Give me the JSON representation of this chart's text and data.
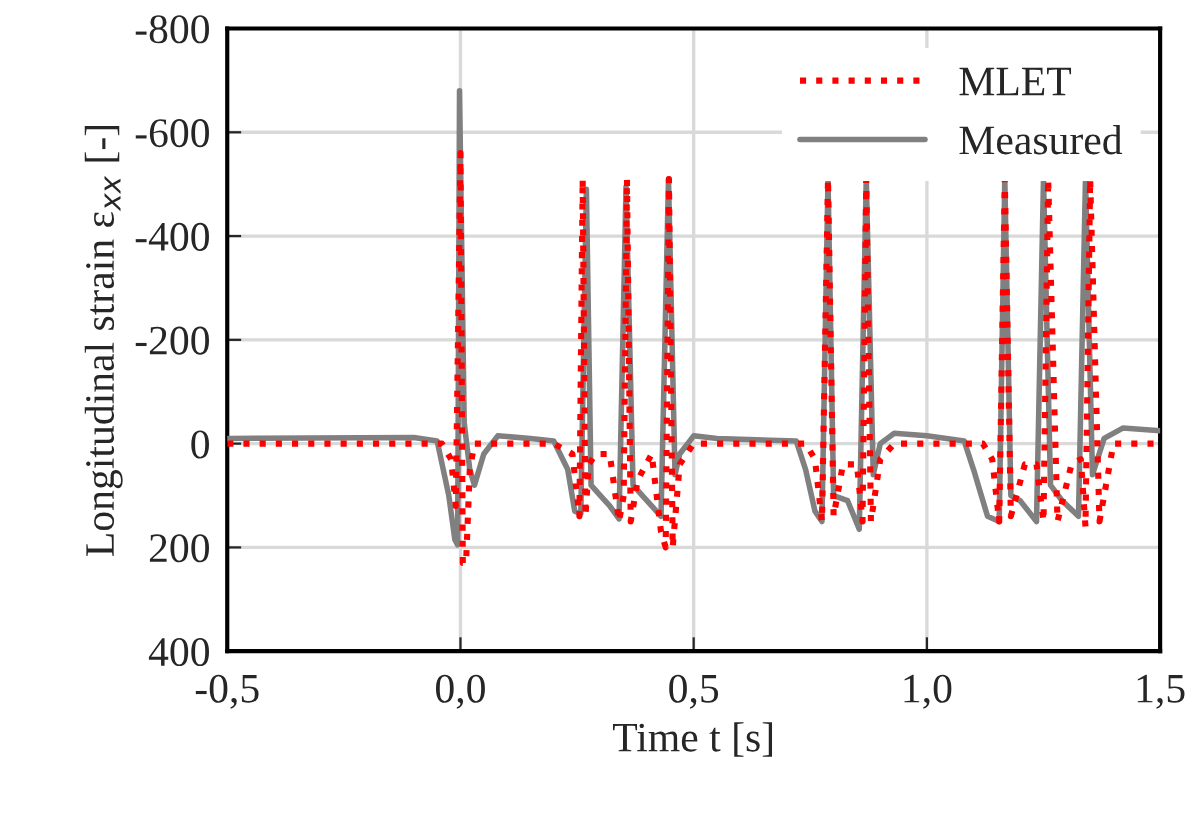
{
  "chart_data": {
    "type": "line",
    "xlabel": "Time t [s]",
    "ylabel": "Longitudinal strain ε$_{xx}$ [-]",
    "xlim": [
      -0.5,
      1.5
    ],
    "xticks": [
      {
        "value": -0.5,
        "label": "-0,5"
      },
      {
        "value": 0,
        "label": "0,0"
      },
      {
        "value": 0.5,
        "label": "0,5"
      },
      {
        "value": 1,
        "label": "1,0"
      },
      {
        "value": 1.5,
        "label": "1,5"
      }
    ],
    "ylim": [
      400,
      -800
    ],
    "yticks": [
      -800,
      -600,
      -400,
      -200,
      0,
      200,
      400
    ],
    "grid": true,
    "legend": "top right",
    "series": [
      {
        "name": "MLET",
        "color": "#ff0000",
        "line_style": "dotted",
        "x": [
          -0.5,
          -0.04,
          -0.02,
          -0.01,
          0.0,
          0.005,
          0.012,
          0.02,
          0.03,
          0.06,
          0.2,
          0.24,
          0.255,
          0.262,
          0.268,
          0.275,
          0.29,
          0.32,
          0.34,
          0.35,
          0.357,
          0.365,
          0.38,
          0.41,
          0.43,
          0.44,
          0.447,
          0.455,
          0.47,
          0.5,
          0.74,
          0.76,
          0.775,
          0.788,
          0.8,
          0.82,
          0.85,
          0.862,
          0.87,
          0.88,
          0.9,
          0.93,
          1.12,
          1.14,
          1.155,
          1.167,
          1.18,
          1.21,
          1.235,
          1.25,
          1.26,
          1.28,
          1.31,
          1.33,
          1.34,
          1.35,
          1.37,
          1.4,
          1.5
        ],
        "values": [
          0,
          0,
          30,
          120,
          -560,
          230,
          230,
          50,
          0,
          0,
          0,
          20,
          140,
          -510,
          140,
          40,
          20,
          20,
          150,
          100,
          -510,
          150,
          70,
          20,
          170,
          200,
          -510,
          200,
          40,
          0,
          0,
          30,
          150,
          -510,
          140,
          40,
          40,
          150,
          -510,
          150,
          30,
          0,
          0,
          30,
          150,
          -510,
          140,
          40,
          40,
          150,
          -510,
          150,
          40,
          30,
          160,
          -510,
          150,
          0,
          0
        ]
      },
      {
        "name": "Measured",
        "color": "#808080",
        "line_style": "solid",
        "x": [
          -0.5,
          -0.1,
          -0.05,
          -0.025,
          -0.012,
          -0.006,
          -0.002,
          0.008,
          0.02,
          0.03,
          0.05,
          0.08,
          0.15,
          0.2,
          0.23,
          0.245,
          0.258,
          0.27,
          0.28,
          0.3,
          0.32,
          0.34,
          0.355,
          0.37,
          0.39,
          0.43,
          0.446,
          0.46,
          0.47,
          0.5,
          0.55,
          0.72,
          0.74,
          0.76,
          0.775,
          0.788,
          0.8,
          0.83,
          0.855,
          0.87,
          0.885,
          0.9,
          0.93,
          1.0,
          1.08,
          1.1,
          1.13,
          1.155,
          1.167,
          1.18,
          1.2,
          1.235,
          1.25,
          1.265,
          1.29,
          1.325,
          1.34,
          1.355,
          1.38,
          1.42,
          1.5
        ],
        "values": [
          -10,
          -12,
          -5,
          100,
          185,
          195,
          -680,
          -40,
          50,
          80,
          20,
          -15,
          -10,
          -5,
          50,
          130,
          135,
          -490,
          80,
          100,
          120,
          145,
          -495,
          80,
          100,
          140,
          -510,
          60,
          20,
          -15,
          -10,
          -5,
          50,
          130,
          150,
          -510,
          100,
          110,
          165,
          -510,
          60,
          0,
          -20,
          -15,
          -5,
          50,
          140,
          150,
          -510,
          100,
          110,
          150,
          -510,
          80,
          110,
          140,
          -510,
          60,
          -10,
          -30,
          -25
        ]
      }
    ]
  }
}
